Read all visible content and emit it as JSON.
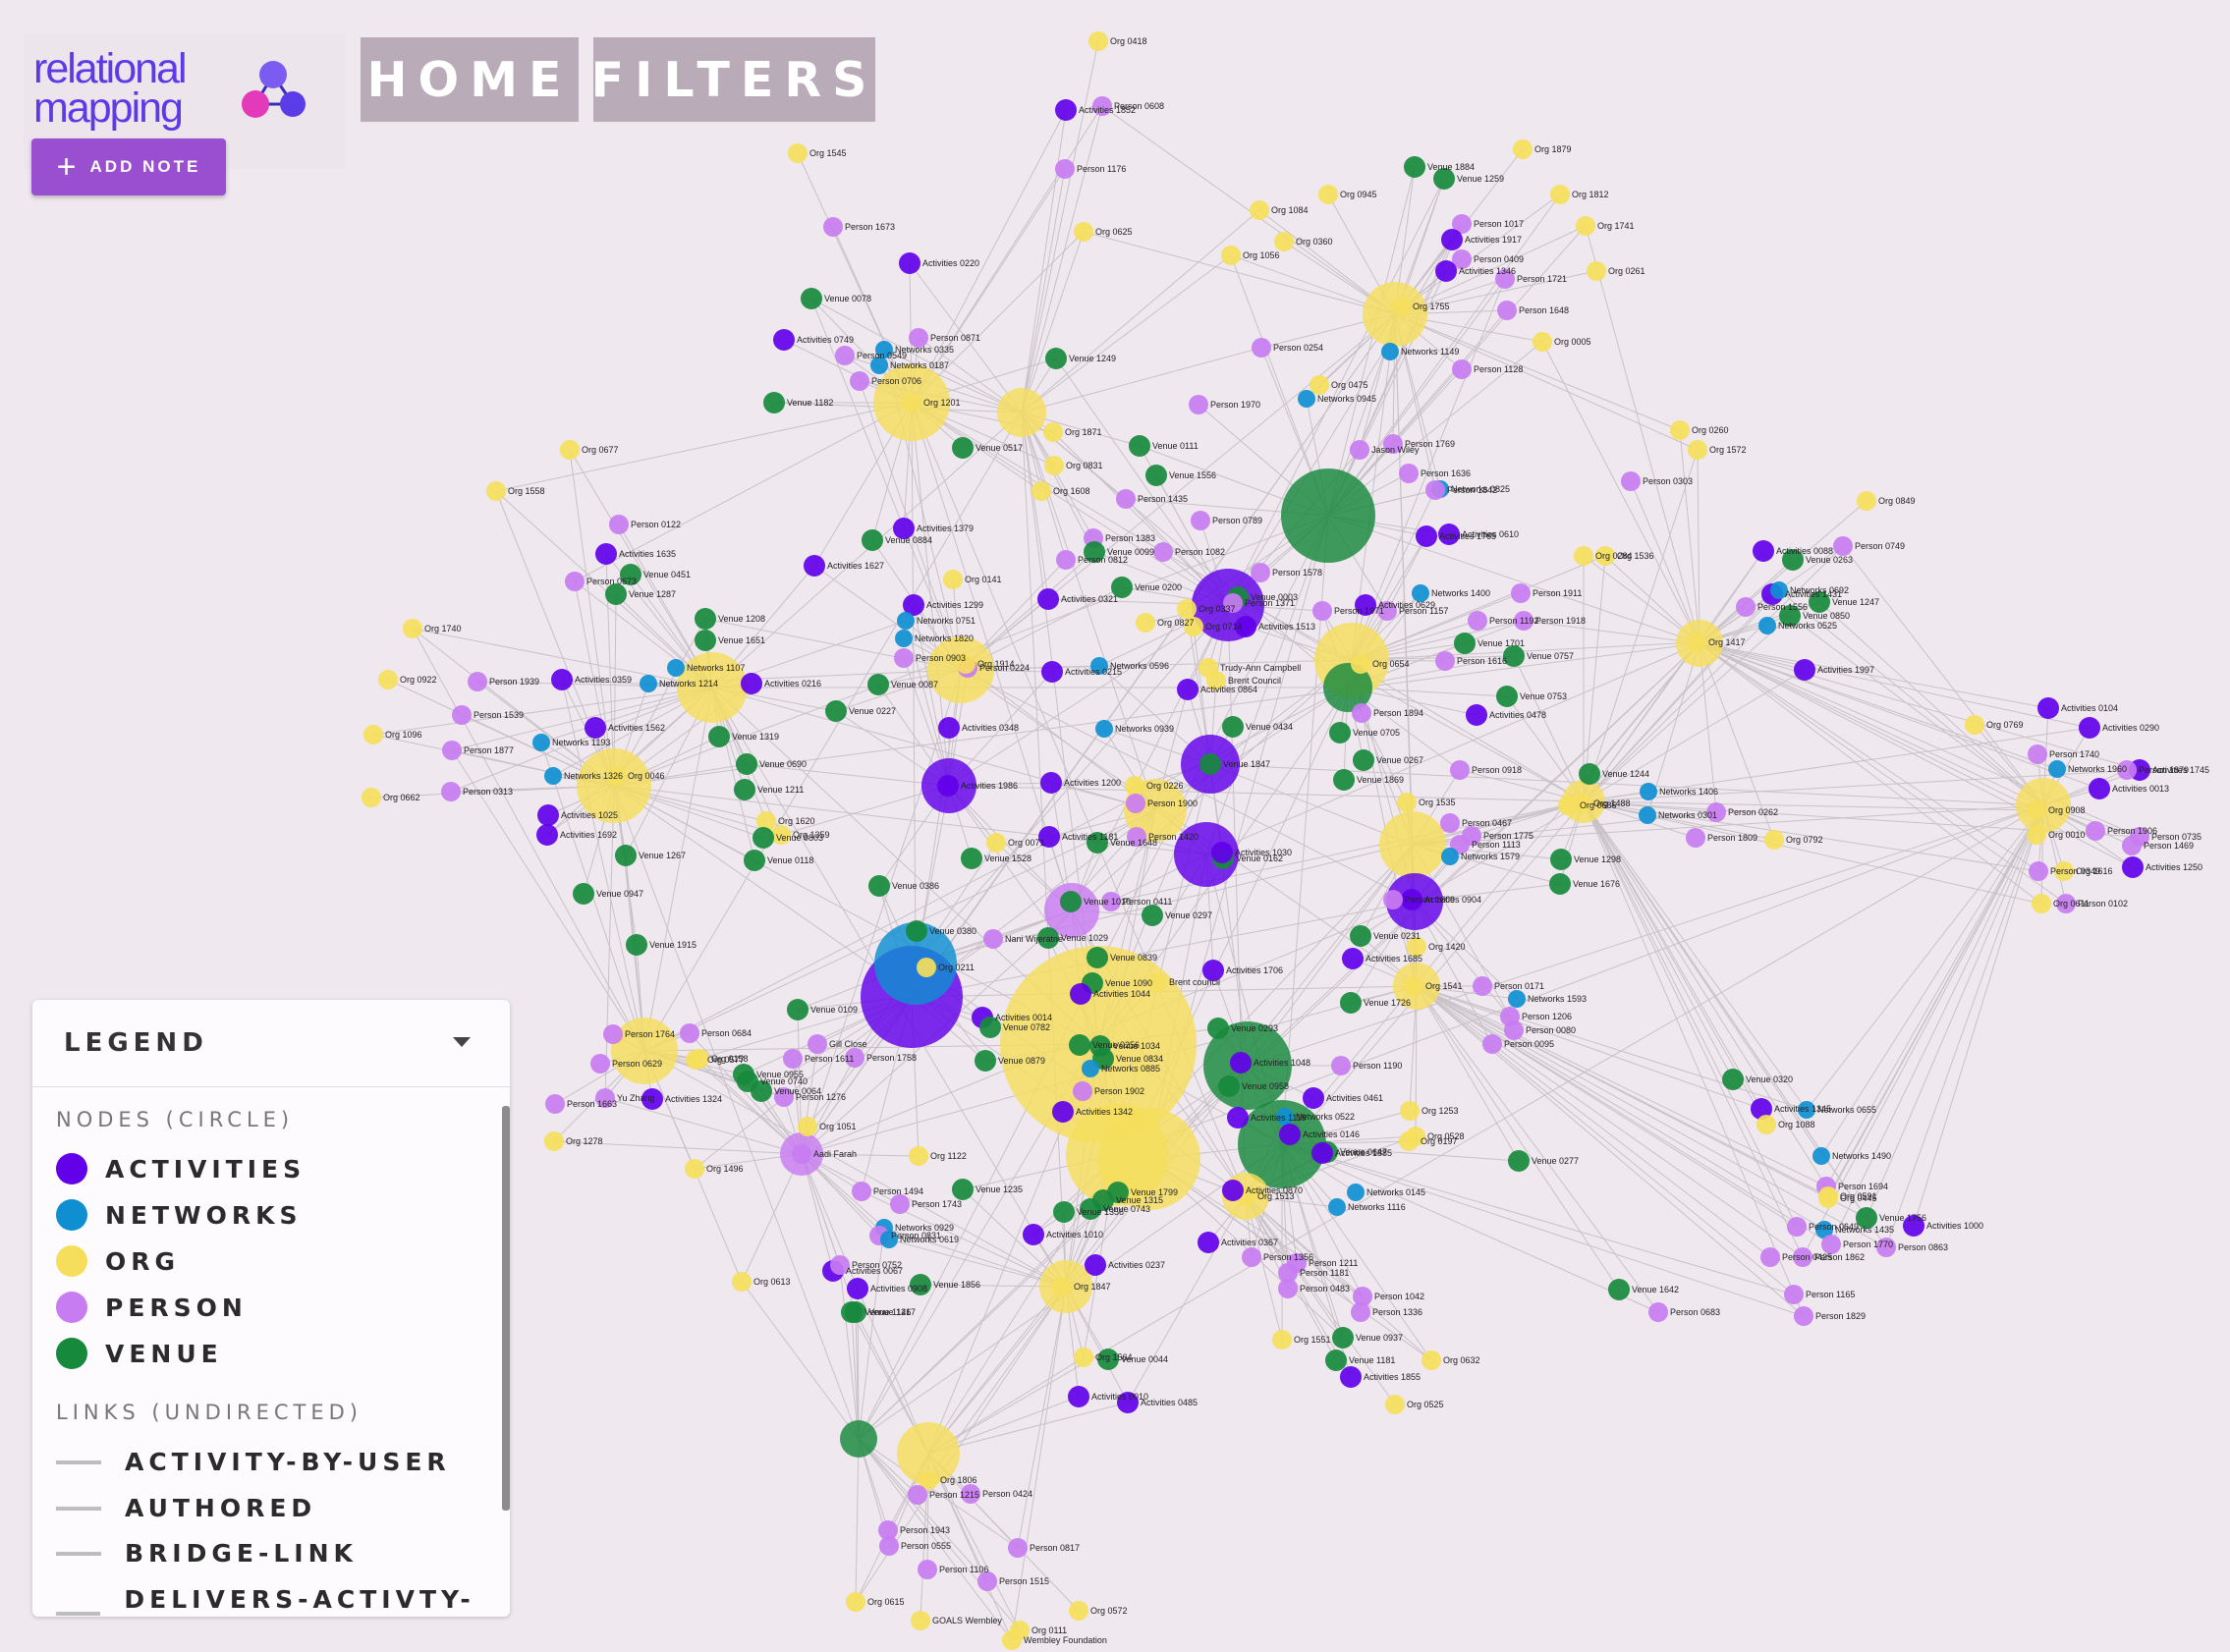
{
  "app": {
    "logo_line1": "relational",
    "logo_line2": "mapping",
    "add_note_label": "ADD NOTE",
    "nav": {
      "home": "HOME",
      "filters": "FILTERS"
    }
  },
  "legend": {
    "title": "LEGEND",
    "nodes_title": "NODES (CIRCLE)",
    "node_types": [
      {
        "label": "ACTIVITIES",
        "color": "#6200ea"
      },
      {
        "label": "NETWORKS",
        "color": "#0f8fd2"
      },
      {
        "label": "ORG",
        "color": "#f5de5c"
      },
      {
        "label": "PERSON",
        "color": "#c87cf1"
      },
      {
        "label": "VENUE",
        "color": "#17893c"
      }
    ],
    "links_title": "LINKS (UNDIRECTED)",
    "link_types": [
      "ACTIVITY-BY-USER",
      "AUTHORED",
      "BRIDGE-LINK",
      "DELIVERS-ACTIVTY-IN"
    ]
  },
  "graph": {
    "colors": {
      "A": "#6200ea",
      "N": "#0f8fd2",
      "O": "#f5de5c",
      "P": "#c87cf1",
      "V": "#17893c",
      "edge": "#c8c2c8"
    },
    "nodes": [
      [
        "Org 0418",
        "O"
      ],
      [
        "Activities 1852",
        "A"
      ],
      [
        "Person 0608",
        "P"
      ],
      [
        "Org 1545",
        "O"
      ],
      [
        "Person 1176",
        "P"
      ],
      [
        "Org 0625",
        "O"
      ],
      [
        "Person 1673",
        "P"
      ],
      [
        "Activities 0220",
        "A"
      ],
      [
        "Venue 0078",
        "V"
      ],
      [
        "Activities 0749",
        "A"
      ],
      [
        "Person 0871",
        "P"
      ],
      [
        "Networks 0335",
        "N"
      ],
      [
        "Networks 0187",
        "N"
      ],
      [
        "Person 0549",
        "P"
      ],
      [
        "Person 0706",
        "P"
      ],
      [
        "Org 1201",
        "O"
      ],
      [
        "Venue 1182",
        "V"
      ],
      [
        "Venue 1249",
        "V"
      ],
      [
        "Org 0945",
        "O"
      ],
      [
        "Org 1084",
        "O"
      ],
      [
        "Org 1056",
        "O"
      ],
      [
        "Org 0360",
        "O"
      ],
      [
        "Venue 1884",
        "V"
      ],
      [
        "Venue 1259",
        "V"
      ],
      [
        "Org 1879",
        "O"
      ],
      [
        "Org 1812",
        "O"
      ],
      [
        "Org 1741",
        "O"
      ],
      [
        "Org 0261",
        "O"
      ],
      [
        "Person 1017",
        "P"
      ],
      [
        "Activities 1917",
        "A"
      ],
      [
        "Person 0409",
        "P"
      ],
      [
        "Activities 1346",
        "A"
      ],
      [
        "Person 1721",
        "P"
      ],
      [
        "Org 1755",
        "O"
      ],
      [
        "Person 1648",
        "P"
      ],
      [
        "Org 0005",
        "O"
      ],
      [
        "Networks 1149",
        "N"
      ],
      [
        "Person 1128",
        "P"
      ],
      [
        "Person 0254",
        "P"
      ],
      [
        "Org 0475",
        "O"
      ],
      [
        "Networks 0945",
        "N"
      ],
      [
        "Org 1871",
        "O"
      ],
      [
        "Venue 0517",
        "V"
      ],
      [
        "Org 0831",
        "O"
      ],
      [
        "Venue 0111",
        "V"
      ],
      [
        "Person 1970",
        "P"
      ],
      [
        "Org 0677",
        "O"
      ],
      [
        "Org 1558",
        "O"
      ],
      [
        "Person 0122",
        "P"
      ],
      [
        "Activities 1635",
        "A"
      ],
      [
        "Person 0673",
        "P"
      ],
      [
        "Venue 0451",
        "V"
      ],
      [
        "Venue 1287",
        "V"
      ],
      [
        "Org 1740",
        "O"
      ],
      [
        "Org 0922",
        "O"
      ],
      [
        "Person 1939",
        "P"
      ],
      [
        "Activities 0359",
        "A"
      ],
      [
        "Person 1539",
        "P"
      ],
      [
        "Org 1096",
        "O"
      ],
      [
        "Person 1877",
        "P"
      ],
      [
        "Org 0662",
        "O"
      ],
      [
        "Person 0313",
        "P"
      ],
      [
        "Networks 1214",
        "N"
      ],
      [
        "Networks 1107",
        "N"
      ],
      [
        "Activities 0216",
        "A"
      ],
      [
        "Venue 1208",
        "V"
      ],
      [
        "Venue 1651",
        "V"
      ],
      [
        "Venue 1319",
        "V"
      ],
      [
        "Networks 1193",
        "N"
      ],
      [
        "Activities 1562",
        "A"
      ],
      [
        "Networks 1326",
        "N"
      ],
      [
        "Org 0046",
        "O"
      ],
      [
        "Activities 1025",
        "A"
      ],
      [
        "Activities 1692",
        "A"
      ],
      [
        "Venue 1267",
        "V"
      ],
      [
        "Venue 0947",
        "V"
      ],
      [
        "Venue 1915",
        "V"
      ],
      [
        "Venue 0690",
        "V"
      ],
      [
        "Venue 1211",
        "V"
      ],
      [
        "Org 1620",
        "O"
      ],
      [
        "Org 1359",
        "O"
      ],
      [
        "Venue 0803",
        "V"
      ],
      [
        "Venue 0118",
        "V"
      ],
      [
        "Venue 0386",
        "V"
      ],
      [
        "Venue 1556",
        "V"
      ],
      [
        "Org 1608",
        "O"
      ],
      [
        "Person 1435",
        "P"
      ],
      [
        "Activities 1379",
        "A"
      ],
      [
        "Venue 0884",
        "V"
      ],
      [
        "Activities 1627",
        "A"
      ],
      [
        "Org 0141",
        "O"
      ],
      [
        "Activities 1299",
        "A"
      ],
      [
        "Networks 0751",
        "N"
      ],
      [
        "Networks 1820",
        "N"
      ],
      [
        "Person 0903",
        "P"
      ],
      [
        "Person 0224",
        "P"
      ],
      [
        "Org 1914",
        "O"
      ],
      [
        "Venue 0087",
        "V"
      ],
      [
        "Venue 0227",
        "V"
      ],
      [
        "Activities 0348",
        "A"
      ],
      [
        "Activities 0215",
        "A"
      ],
      [
        "Networks 0596",
        "N"
      ],
      [
        "Person 1383",
        "P"
      ],
      [
        "Person 0812",
        "P"
      ],
      [
        "Venue 0099",
        "V"
      ],
      [
        "Person 1082",
        "P"
      ],
      [
        "Venue 0200",
        "V"
      ],
      [
        "Activities 0321",
        "A"
      ],
      [
        "Person 0789",
        "P"
      ],
      [
        "Person 1578",
        "P"
      ],
      [
        "Org 0337",
        "O"
      ],
      [
        "Org 0827",
        "O"
      ],
      [
        "Org 0714",
        "O"
      ],
      [
        "Venue 0003",
        "V"
      ],
      [
        "Person 1371",
        "P"
      ],
      [
        "Activities 1513",
        "A"
      ],
      [
        "Person 1971",
        "P"
      ],
      [
        "Trudy-Ann Campbell",
        "O"
      ],
      [
        "Brent Council",
        "O"
      ],
      [
        "Activities 0864",
        "A"
      ],
      [
        "Venue 0434",
        "V"
      ],
      [
        "Networks 0939",
        "N"
      ],
      [
        "Org 0226",
        "O"
      ],
      [
        "Venue 1847",
        "V"
      ],
      [
        "Activities 1986",
        "A"
      ],
      [
        "Activities 1200",
        "A"
      ],
      [
        "Person 1900",
        "P"
      ],
      [
        "Person 1420",
        "P"
      ],
      [
        "Venue 0162",
        "V"
      ],
      [
        "Activities 1030",
        "A"
      ],
      [
        "Activities 1181",
        "A"
      ],
      [
        "Org 0071",
        "O"
      ],
      [
        "Venue 1528",
        "V"
      ],
      [
        "Venue 1648",
        "V"
      ],
      [
        "Person 0411",
        "P"
      ],
      [
        "Venue 0297",
        "V"
      ],
      [
        "Venue 1010",
        "V"
      ],
      [
        "Nani Wijeratne",
        "P"
      ],
      [
        "Venue 0380",
        "V"
      ],
      [
        "Venue 1029",
        "V"
      ],
      [
        "Org 0211",
        "O"
      ],
      [
        "Venue 0839",
        "V"
      ],
      [
        "Venue 1090",
        "V"
      ],
      [
        "Activities 1044",
        "A"
      ],
      [
        "Brent council",
        "O"
      ],
      [
        "Activities 1706",
        "A"
      ],
      [
        "Venue 0109",
        "V"
      ],
      [
        "Activities 0014",
        "A"
      ],
      [
        "Venue 0782",
        "V"
      ],
      [
        "Venue 0879",
        "V"
      ],
      [
        "Venue 0256",
        "V"
      ],
      [
        "Venue 1034",
        "V"
      ],
      [
        "Venue 0834",
        "V"
      ],
      [
        "Networks 0885",
        "N"
      ],
      [
        "Venue 0293",
        "V"
      ],
      [
        "Activities 1048",
        "A"
      ],
      [
        "Venue 0958",
        "V"
      ],
      [
        "Activities 1119",
        "A"
      ],
      [
        "Networks 0522",
        "N"
      ],
      [
        "Activities 0146",
        "A"
      ],
      [
        "Venue 0647",
        "V"
      ],
      [
        "Activities 1885",
        "A"
      ],
      [
        "Networks 0145",
        "N"
      ],
      [
        "Networks 1116",
        "N"
      ],
      [
        "Org 1513",
        "O"
      ],
      [
        "Activities 0870",
        "A"
      ],
      [
        "Venue 1799",
        "V"
      ],
      [
        "Venue 1315",
        "V"
      ],
      [
        "Venue 0743",
        "V"
      ],
      [
        "Venue 1356",
        "V"
      ],
      [
        "Activities 1010",
        "A"
      ],
      [
        "Activities 0237",
        "A"
      ],
      [
        "Org 1847",
        "O"
      ],
      [
        "Org 1564",
        "O"
      ],
      [
        "Venue 0044",
        "V"
      ],
      [
        "Activities 0010",
        "A"
      ],
      [
        "Activities 0485",
        "A"
      ],
      [
        "Activities 0367",
        "A"
      ],
      [
        "Person 1356",
        "P"
      ],
      [
        "Person 1211",
        "P"
      ],
      [
        "Person 1181",
        "P"
      ],
      [
        "Person 0483",
        "P"
      ],
      [
        "Person 1042",
        "P"
      ],
      [
        "Person 1336",
        "P"
      ],
      [
        "Org 1551",
        "O"
      ],
      [
        "Venue 0937",
        "V"
      ],
      [
        "Venue 1181",
        "V"
      ],
      [
        "Activities 1855",
        "A"
      ],
      [
        "Org 0632",
        "O"
      ],
      [
        "Org 0525",
        "O"
      ],
      [
        "Org 1122",
        "O"
      ],
      [
        "Person 1494",
        "P"
      ],
      [
        "Person 1743",
        "P"
      ],
      [
        "Venue 1235",
        "V"
      ],
      [
        "Networks 0929",
        "N"
      ],
      [
        "Person 0831",
        "P"
      ],
      [
        "Networks 0619",
        "N"
      ],
      [
        "Org 0613",
        "O"
      ],
      [
        "Activities 0067",
        "A"
      ],
      [
        "Person 0752",
        "P"
      ],
      [
        "Activities 0908",
        "A"
      ],
      [
        "Venue 1856",
        "V"
      ],
      [
        "Venue 1146",
        "V"
      ],
      [
        "Venue 1217",
        "V"
      ],
      [
        "Org 1806",
        "O"
      ],
      [
        "Person 1943",
        "P"
      ],
      [
        "Person 1215",
        "P"
      ],
      [
        "Person 0424",
        "P"
      ],
      [
        "Person 0555",
        "P"
      ],
      [
        "Person 0817",
        "P"
      ],
      [
        "Person 1106",
        "P"
      ],
      [
        "Person 1515",
        "P"
      ],
      [
        "Org 0615",
        "O"
      ],
      [
        "GOALS Wembley",
        "O"
      ],
      [
        "Org 0111",
        "O"
      ],
      [
        "Wembley Foundation",
        "O"
      ],
      [
        "Org 0572",
        "O"
      ],
      [
        "Org 1051",
        "O"
      ],
      [
        "Org 1496",
        "O"
      ],
      [
        "Aadi Farah",
        "P"
      ],
      [
        "Person 1276",
        "P"
      ],
      [
        "Venue 0064",
        "V"
      ],
      [
        "Activities 1324",
        "A"
      ],
      [
        "Venue 0740",
        "V"
      ],
      [
        "Venue 0955",
        "V"
      ],
      [
        "Person 1611",
        "P"
      ],
      [
        "Gill Close",
        "P"
      ],
      [
        "Person 1758",
        "P"
      ],
      [
        "Person 1764",
        "P"
      ],
      [
        "Person 0684",
        "P"
      ],
      [
        "Org 0158",
        "O"
      ],
      [
        "Person 0629",
        "P"
      ],
      [
        "Org 0577",
        "O"
      ],
      [
        "Yu Zhang",
        "P"
      ],
      [
        "Person 1663",
        "P"
      ],
      [
        "Org 1278",
        "O"
      ],
      [
        "Activities 1342",
        "A"
      ],
      [
        "Person 1902",
        "P"
      ],
      [
        "Org 1253",
        "O"
      ],
      [
        "Org 0528",
        "O"
      ],
      [
        "Org 0197",
        "O"
      ],
      [
        "Venue 0277",
        "V"
      ],
      [
        "Activities 0461",
        "A"
      ],
      [
        "Person 1190",
        "P"
      ],
      [
        "Venue 1726",
        "V"
      ],
      [
        "Org 1541",
        "O"
      ],
      [
        "Person 0171",
        "P"
      ],
      [
        "Networks 1593",
        "N"
      ],
      [
        "Person 1206",
        "P"
      ],
      [
        "Person 0080",
        "P"
      ],
      [
        "Person 0095",
        "P"
      ],
      [
        "Venue 0231",
        "V"
      ],
      [
        "Org 1420",
        "O"
      ],
      [
        "Activities 0904",
        "A"
      ],
      [
        "Person 1609",
        "P"
      ],
      [
        "Activities 1685",
        "A"
      ],
      [
        "Venue 1298",
        "V"
      ],
      [
        "Venue 1676",
        "V"
      ],
      [
        "Person 1113",
        "P"
      ],
      [
        "Networks 1579",
        "N"
      ],
      [
        "Person 1775",
        "P"
      ],
      [
        "Person 0467",
        "P"
      ],
      [
        "Org 0685",
        "O"
      ],
      [
        "Org 1488",
        "O"
      ],
      [
        "Networks 1406",
        "N"
      ],
      [
        "Networks 0301",
        "N"
      ],
      [
        "Person 0262",
        "P"
      ],
      [
        "Person 1809",
        "P"
      ],
      [
        "Org 0792",
        "O"
      ],
      [
        "Org 1535",
        "O"
      ],
      [
        "Venue 1869",
        "V"
      ],
      [
        "Venue 1244",
        "V"
      ],
      [
        "Person 0918",
        "P"
      ],
      [
        "Venue 0267",
        "V"
      ],
      [
        "Venue 0705",
        "V"
      ],
      [
        "Person 1894",
        "P"
      ],
      [
        "Activities 0478",
        "A"
      ],
      [
        "Venue 0753",
        "V"
      ],
      [
        "Venue 0757",
        "V"
      ],
      [
        "Person 1616",
        "P"
      ],
      [
        "Org 0654",
        "O"
      ],
      [
        "Person 1918",
        "P"
      ],
      [
        "Person 1911",
        "P"
      ],
      [
        "Org 0284",
        "O"
      ],
      [
        "Org 1536",
        "O"
      ],
      [
        "Person 1192",
        "P"
      ],
      [
        "Venue 1701",
        "V"
      ],
      [
        "Person 1157",
        "P"
      ],
      [
        "Activities 0629",
        "A"
      ],
      [
        "Networks 1400",
        "N"
      ],
      [
        "Activities 1765",
        "A"
      ],
      [
        "Activities 0610",
        "A"
      ],
      [
        "Networks 0825",
        "N"
      ],
      [
        "Person 1842",
        "P"
      ],
      [
        "Person 1636",
        "P"
      ],
      [
        "Person 1769",
        "P"
      ],
      [
        "Jason Wiley",
        "P"
      ],
      [
        "Person 0303",
        "P"
      ],
      [
        "Org 0260",
        "O"
      ],
      [
        "Org 1572",
        "O"
      ],
      [
        "Org 0849",
        "O"
      ],
      [
        "Activities 0088",
        "A"
      ],
      [
        "Person 0749",
        "P"
      ],
      [
        "Venue 0263",
        "V"
      ],
      [
        "Activities 1431",
        "A"
      ],
      [
        "Networks 0692",
        "N"
      ],
      [
        "Person 1556",
        "P"
      ],
      [
        "Venue 1247",
        "V"
      ],
      [
        "Venue 0850",
        "V"
      ],
      [
        "Networks 0525",
        "N"
      ],
      [
        "Activities 1997",
        "A"
      ],
      [
        "Org 1417",
        "O"
      ],
      [
        "Org 0769",
        "O"
      ],
      [
        "Activities 0104",
        "A"
      ],
      [
        "Activities 0290",
        "A"
      ],
      [
        "Person 1740",
        "P"
      ],
      [
        "Networks 1960",
        "N"
      ],
      [
        "Activities 1745",
        "A"
      ],
      [
        "Person 1879",
        "P"
      ],
      [
        "Activities 0013",
        "A"
      ],
      [
        "Org 0908",
        "O"
      ],
      [
        "Org 0010",
        "O"
      ],
      [
        "Person 1906",
        "P"
      ],
      [
        "Person 0735",
        "P"
      ],
      [
        "Person 1469",
        "P"
      ],
      [
        "Activities 1250",
        "A"
      ],
      [
        "Person 0349",
        "P"
      ],
      [
        "Org 1616",
        "O"
      ],
      [
        "Person 0102",
        "P"
      ],
      [
        "Org 0611",
        "O"
      ],
      [
        "Venue 0320",
        "V"
      ],
      [
        "Activities 1345",
        "A"
      ],
      [
        "Networks 0655",
        "N"
      ],
      [
        "Org 1088",
        "O"
      ],
      [
        "Networks 1490",
        "N"
      ],
      [
        "Person 1694",
        "P"
      ],
      [
        "Networks 1435",
        "N"
      ],
      [
        "Person 1770",
        "P"
      ],
      [
        "Person 0863",
        "P"
      ],
      [
        "Activities 1000",
        "A"
      ],
      [
        "Org 0591",
        "O"
      ],
      [
        "Venue 1756",
        "V"
      ],
      [
        "Org 0445",
        "O"
      ],
      [
        "Person 0649",
        "P"
      ],
      [
        "Person 1862",
        "P"
      ],
      [
        "Person 0425",
        "P"
      ],
      [
        "Person 1165",
        "P"
      ],
      [
        "Person 1829",
        "P"
      ],
      [
        "Venue 1642",
        "V"
      ],
      [
        "Person 0683",
        "P"
      ]
    ]
  }
}
